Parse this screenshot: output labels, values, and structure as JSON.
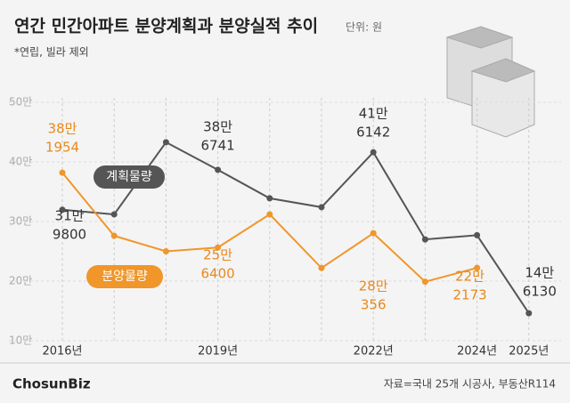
{
  "chart_data": {
    "type": "line",
    "title": "연간 민간아파트 분양계획과 분양실적 추이",
    "subtitle": "단위: 원",
    "note": "*연립, 빌라 제외",
    "source": "자료=국내 25개 시공사, 부동산R114",
    "logo": "ChosunBiz",
    "categories": [
      "2016년",
      null,
      null,
      "2019년",
      null,
      null,
      "2022년",
      null,
      "2024년",
      "2025년"
    ],
    "series": [
      {
        "name": "계획물량",
        "color": "#555555",
        "values": [
          31.98,
          31.2,
          43.3,
          38.6741,
          33.9,
          32.4,
          41.6142,
          27.0,
          27.7,
          14.613
        ],
        "value_labels": [
          [
            "31만",
            "9800"
          ],
          null,
          null,
          [
            "38만",
            "6741"
          ],
          null,
          null,
          [
            "41만",
            "6142"
          ],
          null,
          null,
          [
            "14만",
            "6130"
          ]
        ]
      },
      {
        "name": "분양물량",
        "color": "#f0962a",
        "values": [
          38.1954,
          27.6,
          25.0,
          25.64,
          31.2,
          22.2,
          28.0356,
          19.9,
          22.2173,
          null
        ],
        "value_labels": [
          [
            "38만",
            "1954"
          ],
          null,
          null,
          [
            "25만",
            "6400"
          ],
          null,
          null,
          [
            "28만",
            "356"
          ],
          null,
          [
            "22만",
            "2173"
          ],
          null
        ]
      }
    ],
    "ylim": [
      10,
      50
    ],
    "yticks": [
      {
        "value": 10,
        "label": "10만"
      },
      {
        "value": 20,
        "label": "20만"
      },
      {
        "value": 30,
        "label": "30만"
      },
      {
        "value": 40,
        "label": "40만"
      },
      {
        "value": 50,
        "label": "50만"
      }
    ],
    "grid": true
  }
}
